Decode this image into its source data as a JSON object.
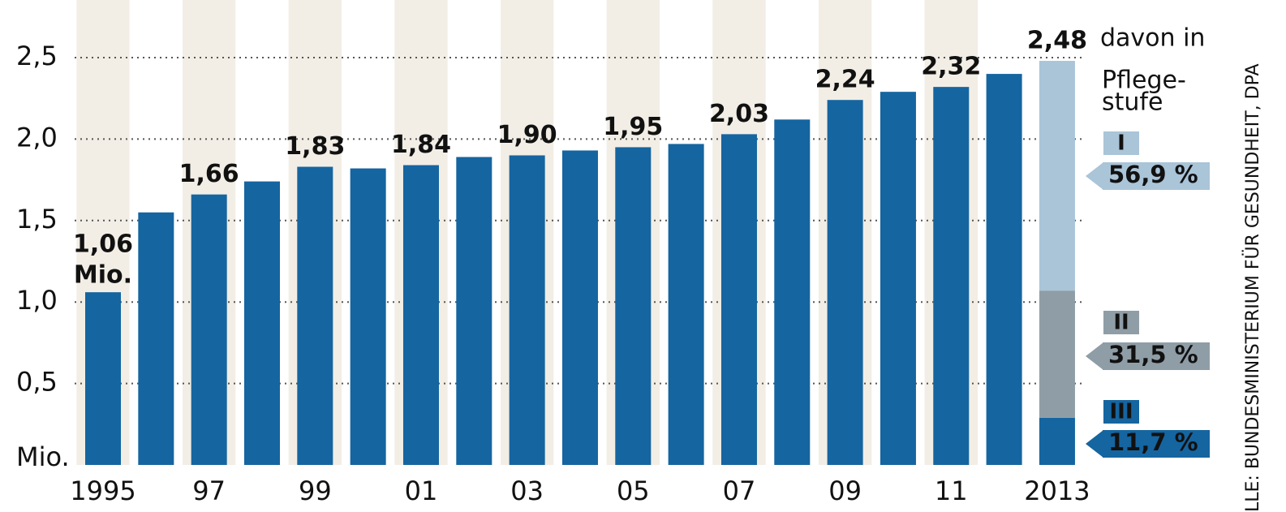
{
  "chart_data": {
    "type": "bar",
    "categories": [
      "1995",
      null,
      "97",
      null,
      "99",
      null,
      "01",
      null,
      "03",
      null,
      "05",
      null,
      "07",
      null,
      "09",
      null,
      "11",
      null,
      "2013"
    ],
    "values": [
      1.06,
      1.55,
      1.66,
      1.74,
      1.83,
      1.82,
      1.84,
      1.89,
      1.9,
      1.93,
      1.95,
      1.97,
      2.03,
      2.12,
      2.24,
      2.29,
      2.32,
      2.4,
      null
    ],
    "value_labels": [
      "1,06",
      null,
      "1,66",
      null,
      "1,83",
      null,
      "1,84",
      null,
      "1,90",
      null,
      "1,95",
      null,
      "2,03",
      null,
      "2,24",
      null,
      "2,32",
      null,
      null
    ],
    "first_label_unit": "Mio.",
    "color": "#1565a0",
    "stack_total": {
      "value": 2.48,
      "label": "2,48"
    },
    "legend_title": [
      "davon in",
      "Pflege-",
      "stufe"
    ],
    "stack_series": [
      {
        "name": "III",
        "color": "#1565a0",
        "share_label": "11,7 %",
        "values": [
          null,
          null,
          null,
          null,
          null,
          null,
          null,
          null,
          null,
          null,
          null,
          null,
          null,
          null,
          null,
          null,
          null,
          null,
          0.29
        ]
      },
      {
        "name": "II",
        "color": "#8f9da6",
        "share_label": "31,5 %",
        "values": [
          null,
          null,
          null,
          null,
          null,
          null,
          null,
          null,
          null,
          null,
          null,
          null,
          null,
          null,
          null,
          null,
          null,
          null,
          0.78
        ]
      },
      {
        "name": "I",
        "color": "#aac4d8",
        "share_label": "56,9 %",
        "values": [
          null,
          null,
          null,
          null,
          null,
          null,
          null,
          null,
          null,
          null,
          null,
          null,
          null,
          null,
          null,
          null,
          null,
          null,
          1.41
        ]
      }
    ],
    "ylim": [
      0,
      2.5
    ],
    "yticks": [
      {
        "value": 0,
        "label": "Mio."
      },
      {
        "value": 0.5,
        "label": "0,5"
      },
      {
        "value": 1,
        "label": "1,0"
      },
      {
        "value": 1.5,
        "label": "1,5"
      },
      {
        "value": 2,
        "label": "2,0"
      },
      {
        "value": 2.5,
        "label": "2,5"
      }
    ],
    "grid": true,
    "source": "LLE: BUNDESMINISTERIUM FÜR GESUNDHEIT, DPA"
  }
}
